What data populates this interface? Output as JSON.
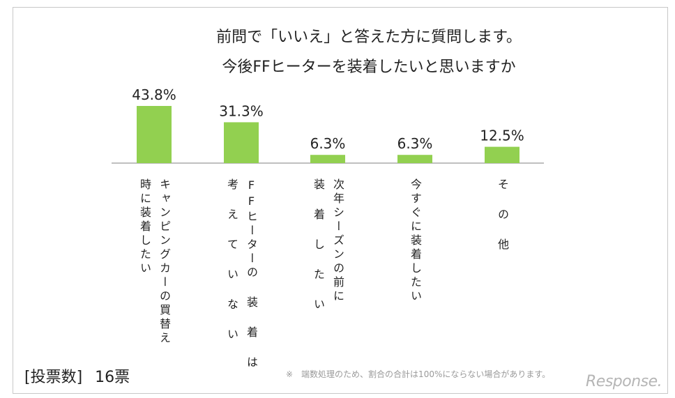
{
  "title": {
    "line1": "前問で「いいえ」と答えた方に質問します。",
    "line2": "今後FFヒーターを装着したいと思いますか"
  },
  "footer": {
    "votes_label": "[投票数]",
    "votes_value": "16票",
    "note": "※　端数処理のため、割合の合計は100%にならない場合があります。",
    "watermark": "Response."
  },
  "colors": {
    "bar": "#92d050",
    "axis": "#bfbfbf",
    "text": "#222222"
  },
  "chart_data": {
    "type": "bar",
    "title": "今後FFヒーターを装着したいと思いますか",
    "categories": [
      "キャンピングカーの買替え時に装着したい",
      "FFヒーターの装着は考えていない",
      "次年シーズンの前に装着したい",
      "今すぐに装着したい",
      "その他"
    ],
    "values": [
      43.8,
      31.3,
      6.3,
      6.3,
      12.5
    ],
    "value_labels": [
      "43.8%",
      "31.3%",
      "6.3%",
      "6.3%",
      "12.5%"
    ],
    "label_columns": [
      [
        "キャンピングカーの買替え",
        "時に装着したい"
      ],
      [
        "FFヒーターの 装 着 は",
        "考 え て い な い"
      ],
      [
        "次年シーズンの前に",
        "装 着 し た い"
      ],
      [
        "今すぐに装着したい"
      ],
      [
        "そ の 他"
      ]
    ],
    "ylim": [
      0,
      50
    ],
    "grid": false,
    "legend": "none"
  }
}
